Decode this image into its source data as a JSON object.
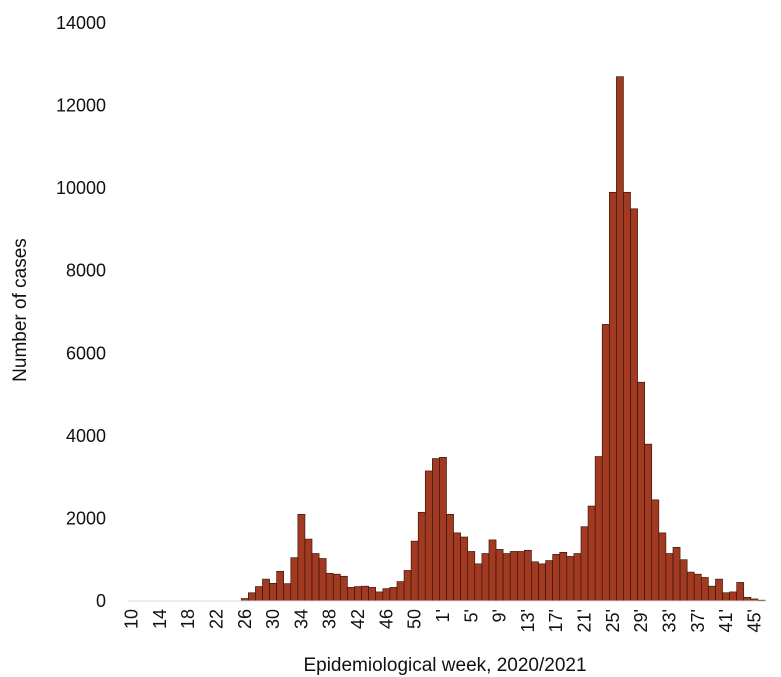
{
  "chart_data": {
    "type": "bar",
    "xlabel": "Epidemiological week, 2020/2021",
    "ylabel": "Number of cases",
    "ylim": [
      0,
      14000
    ],
    "yticks": [
      0,
      2000,
      4000,
      6000,
      8000,
      10000,
      12000,
      14000
    ],
    "grid": false,
    "legend": "none",
    "bar_color": "#a23a22",
    "tick_labels": [
      "10",
      "14",
      "18",
      "22",
      "26",
      "30",
      "34",
      "38",
      "42",
      "46",
      "50",
      "1'",
      "5'",
      "9'",
      "13'",
      "17'",
      "21'",
      "25'",
      "29'",
      "33'",
      "37'",
      "41'",
      "45'"
    ],
    "categories": [
      "10",
      "11",
      "12",
      "13",
      "14",
      "15",
      "16",
      "17",
      "18",
      "19",
      "20",
      "21",
      "22",
      "23",
      "24",
      "25",
      "26",
      "27",
      "28",
      "29",
      "30",
      "31",
      "32",
      "33",
      "34",
      "35",
      "36",
      "37",
      "38",
      "39",
      "40",
      "41",
      "42",
      "43",
      "44",
      "45",
      "46",
      "47",
      "48",
      "49",
      "50",
      "51",
      "52",
      "53",
      "1'",
      "2'",
      "3'",
      "4'",
      "5'",
      "6'",
      "7'",
      "8'",
      "9'",
      "10'",
      "11'",
      "12'",
      "13'",
      "14'",
      "15'",
      "16'",
      "17'",
      "18'",
      "19'",
      "20'",
      "21'",
      "22'",
      "23'",
      "24'",
      "25'",
      "26'",
      "27'",
      "28'",
      "29'",
      "30'",
      "31'",
      "32'",
      "33'",
      "34'",
      "35'",
      "36'",
      "37'",
      "38'",
      "39'",
      "40'",
      "41'",
      "42'",
      "43'",
      "44'",
      "45'",
      "46'"
    ],
    "values": [
      0,
      0,
      0,
      0,
      0,
      0,
      0,
      0,
      0,
      0,
      0,
      0,
      0,
      0,
      0,
      0,
      60,
      200,
      350,
      530,
      430,
      720,
      420,
      1050,
      2100,
      1500,
      1150,
      1030,
      670,
      650,
      600,
      330,
      350,
      360,
      330,
      220,
      300,
      330,
      470,
      740,
      1450,
      2150,
      3150,
      3450,
      3480,
      2100,
      1650,
      1550,
      1200,
      900,
      1150,
      1480,
      1250,
      1150,
      1200,
      1200,
      1230,
      950,
      900,
      980,
      1130,
      1180,
      1080,
      1150,
      1800,
      2300,
      3500,
      6700,
      9900,
      12700,
      9900,
      9500,
      5300,
      3800,
      2450,
      1650,
      1150,
      1300,
      1000,
      700,
      650,
      570,
      360,
      530,
      200,
      220,
      450,
      90,
      50,
      20
    ]
  }
}
